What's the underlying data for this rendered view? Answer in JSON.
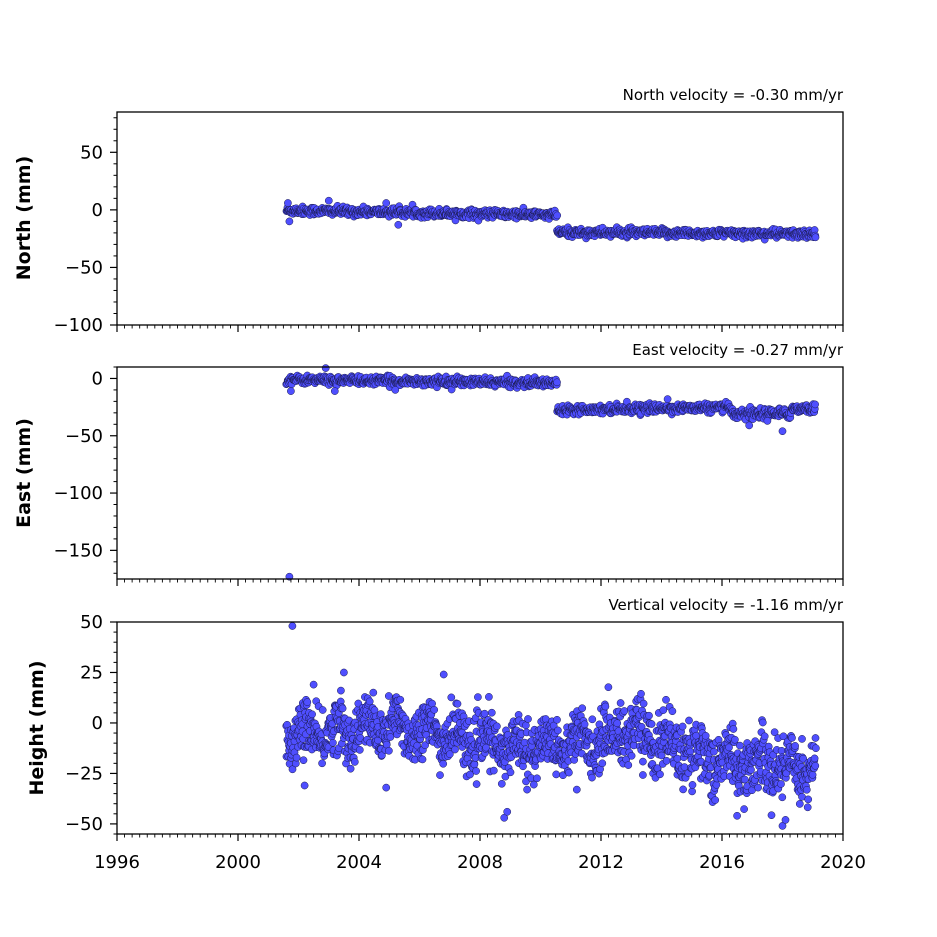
{
  "chart_data": {
    "type": "scatter",
    "marker_color": "#4f4fff",
    "marker_edge": "#1a1a4d",
    "x_axis": {
      "xlim": [
        1996,
        2020
      ],
      "ticks": [
        1996,
        2000,
        2004,
        2008,
        2012,
        2016,
        2020
      ],
      "tick_labels": [
        "1996",
        "2000",
        "2004",
        "2008",
        "2012",
        "2016",
        "2020"
      ],
      "minor_tick_step_years": 0.25
    },
    "panels": [
      {
        "id": "north",
        "ylabel": "North (mm)",
        "velocity_label": "North velocity = -0.30 mm/yr",
        "ylim": [
          -100,
          85
        ],
        "y_ticks": [
          -100,
          -50,
          0,
          50
        ],
        "y_tick_labels": [
          "−100",
          "−50",
          "0",
          "50"
        ],
        "data_start": 2001.6,
        "data_end": 2019.1,
        "segments": [
          {
            "x": [
              2001.6,
              2010.55
            ],
            "y": [
              -0.5,
              -4.5
            ],
            "scatter": 1.8
          },
          {
            "x": [
              2010.55,
              2019.1
            ],
            "y": [
              -19.5,
              -21.0
            ],
            "scatter": 1.8
          }
        ],
        "outliers": [
          [
            2001.7,
            -10
          ],
          [
            2001.65,
            6
          ],
          [
            2003.0,
            8
          ],
          [
            2005.3,
            -13
          ],
          [
            2004.9,
            6
          ]
        ]
      },
      {
        "id": "east",
        "ylabel": "East (mm)",
        "velocity_label": "East velocity = -0.27 mm/yr",
        "ylim": [
          -175,
          10
        ],
        "y_ticks": [
          -150,
          -100,
          -50,
          0
        ],
        "y_tick_labels": [
          "−150",
          "−100",
          "−50",
          "0"
        ],
        "data_start": 2001.6,
        "data_end": 2019.1,
        "segments": [
          {
            "x": [
              2001.6,
              2010.55
            ],
            "y": [
              -1.0,
              -4.0
            ],
            "scatter": 1.8
          },
          {
            "x": [
              2010.55,
              2016.3
            ],
            "y": [
              -27.0,
              -25.5
            ],
            "scatter": 1.8
          },
          {
            "x": [
              2016.3,
              2017.5
            ],
            "y": [
              -30.0,
              -31.0
            ],
            "scatter": 2.5
          },
          {
            "x": [
              2017.5,
              2018.3
            ],
            "y": [
              -30.0,
              -31.0
            ],
            "scatter": 2.0
          },
          {
            "x": [
              2018.3,
              2019.1
            ],
            "y": [
              -26.0,
              -26.5
            ],
            "scatter": 2.0
          }
        ],
        "outliers": [
          [
            2001.7,
            -173
          ],
          [
            2001.75,
            -11
          ],
          [
            2002.9,
            9
          ],
          [
            2003.2,
            -11
          ],
          [
            2005.2,
            -10
          ],
          [
            2014.2,
            -18
          ],
          [
            2016.9,
            -41
          ],
          [
            2017.5,
            -37
          ],
          [
            2018.0,
            -46
          ]
        ]
      },
      {
        "id": "height",
        "ylabel": "Height (mm)",
        "velocity_label": "Vertical velocity = -1.16 mm/yr",
        "ylim": [
          -55,
          50
        ],
        "y_ticks": [
          -50,
          -25,
          0,
          25,
          50
        ],
        "y_tick_labels": [
          "−50",
          "−25",
          "0",
          "25",
          "50"
        ],
        "data_start": 2001.6,
        "data_end": 2019.1,
        "segments": [
          {
            "x": [
              2001.6,
              2012.5
            ],
            "y": [
              -2,
              -12
            ],
            "scatter": 6.5
          },
          {
            "x": [
              2012.5,
              2019.1
            ],
            "y": [
              -5,
              -25
            ],
            "scatter": 7.5
          }
        ],
        "outliers": [
          [
            2001.8,
            48
          ],
          [
            2003.5,
            25
          ],
          [
            2006.8,
            24
          ],
          [
            2002.5,
            19
          ],
          [
            2003.4,
            16
          ],
          [
            2008.8,
            -47
          ],
          [
            2008.9,
            -44
          ],
          [
            2016.5,
            -46
          ],
          [
            2018.0,
            -51
          ],
          [
            2018.1,
            -48
          ],
          [
            2002.2,
            -31
          ],
          [
            2004.9,
            -32
          ],
          [
            2011.2,
            -33
          ]
        ]
      }
    ]
  }
}
